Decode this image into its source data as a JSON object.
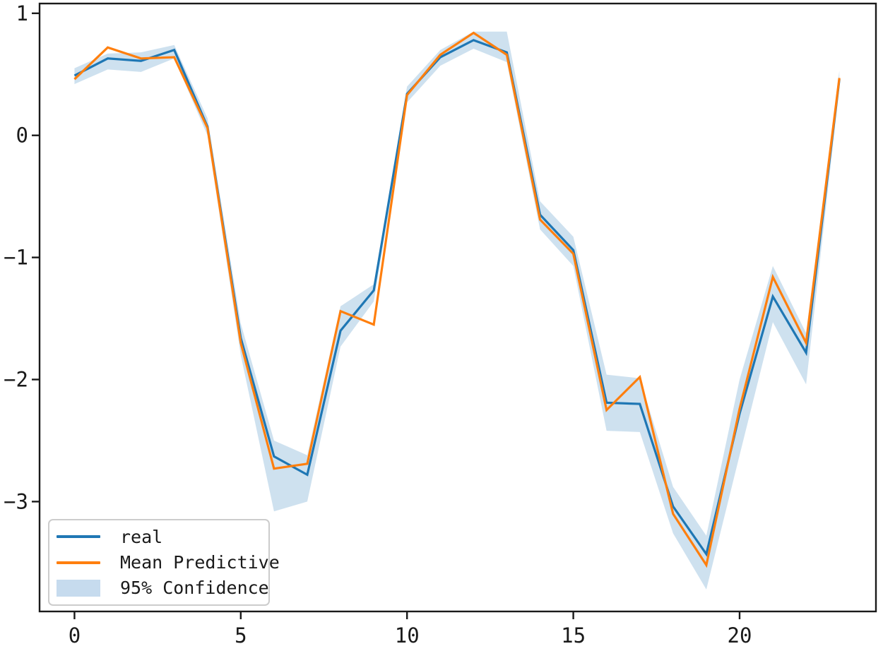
{
  "figure": {
    "background_color": "#ffffff",
    "axes_edge_color": "#1a1a1a",
    "tick_label_color": "#1a1a1a"
  },
  "legend": {
    "position": "lower left",
    "items": [
      {
        "label": "real",
        "type": "line",
        "color": "#1f77b4"
      },
      {
        "label": "Mean Predictive",
        "type": "line",
        "color": "#ff7f0e"
      },
      {
        "label": "95% Confidence",
        "type": "patch",
        "color": "#c6dbee"
      }
    ]
  },
  "chart_data": {
    "type": "line",
    "title": "",
    "xlabel": "",
    "ylabel": "",
    "grid": false,
    "x": [
      0,
      1,
      2,
      3,
      4,
      5,
      6,
      7,
      8,
      9,
      10,
      11,
      12,
      13,
      14,
      15,
      16,
      17,
      18,
      19,
      20,
      21,
      22,
      23
    ],
    "series": [
      {
        "name": "real",
        "color": "#1f77b4",
        "values": [
          0.49,
          0.63,
          0.61,
          0.7,
          0.07,
          -1.66,
          -2.63,
          -2.78,
          -1.6,
          -1.27,
          0.34,
          0.64,
          0.78,
          0.68,
          -0.65,
          -0.94,
          -2.19,
          -2.2,
          -3.04,
          -3.43,
          -2.28,
          -1.32,
          -1.78,
          0.46
        ]
      },
      {
        "name": "Mean Predictive",
        "color": "#ff7f0e",
        "values": [
          0.46,
          0.72,
          0.63,
          0.64,
          0.06,
          -1.7,
          -2.73,
          -2.69,
          -1.44,
          -1.55,
          0.33,
          0.66,
          0.84,
          0.66,
          -0.69,
          -0.97,
          -2.25,
          -1.98,
          -3.1,
          -3.52,
          -2.24,
          -1.16,
          -1.7,
          0.47
        ]
      }
    ],
    "band": {
      "name": "95% Confidence",
      "fill_color": "#1f77b4",
      "fill_opacity": 0.22,
      "upper": [
        0.55,
        0.67,
        0.68,
        0.74,
        0.14,
        -1.54,
        -2.5,
        -2.62,
        -1.4,
        -1.22,
        0.4,
        0.7,
        0.85,
        0.85,
        -0.54,
        -0.83,
        -1.96,
        -1.99,
        -2.88,
        -3.28,
        -2.0,
        -1.07,
        -1.62,
        0.53
      ],
      "lower": [
        0.42,
        0.54,
        0.52,
        0.63,
        0.0,
        -1.8,
        -3.08,
        -3.0,
        -1.73,
        -1.36,
        0.27,
        0.57,
        0.71,
        0.6,
        -0.77,
        -1.07,
        -2.42,
        -2.43,
        -3.26,
        -3.72,
        -2.62,
        -1.53,
        -2.04,
        0.39
      ]
    },
    "x_ticks": [
      0,
      5,
      10,
      15,
      20
    ],
    "y_ticks": [
      1,
      0,
      -1,
      -2,
      -3
    ],
    "xlim": [
      -1.05,
      24.1
    ],
    "ylim": [
      -3.9,
      1.08
    ],
    "legend_position": "lower left"
  }
}
